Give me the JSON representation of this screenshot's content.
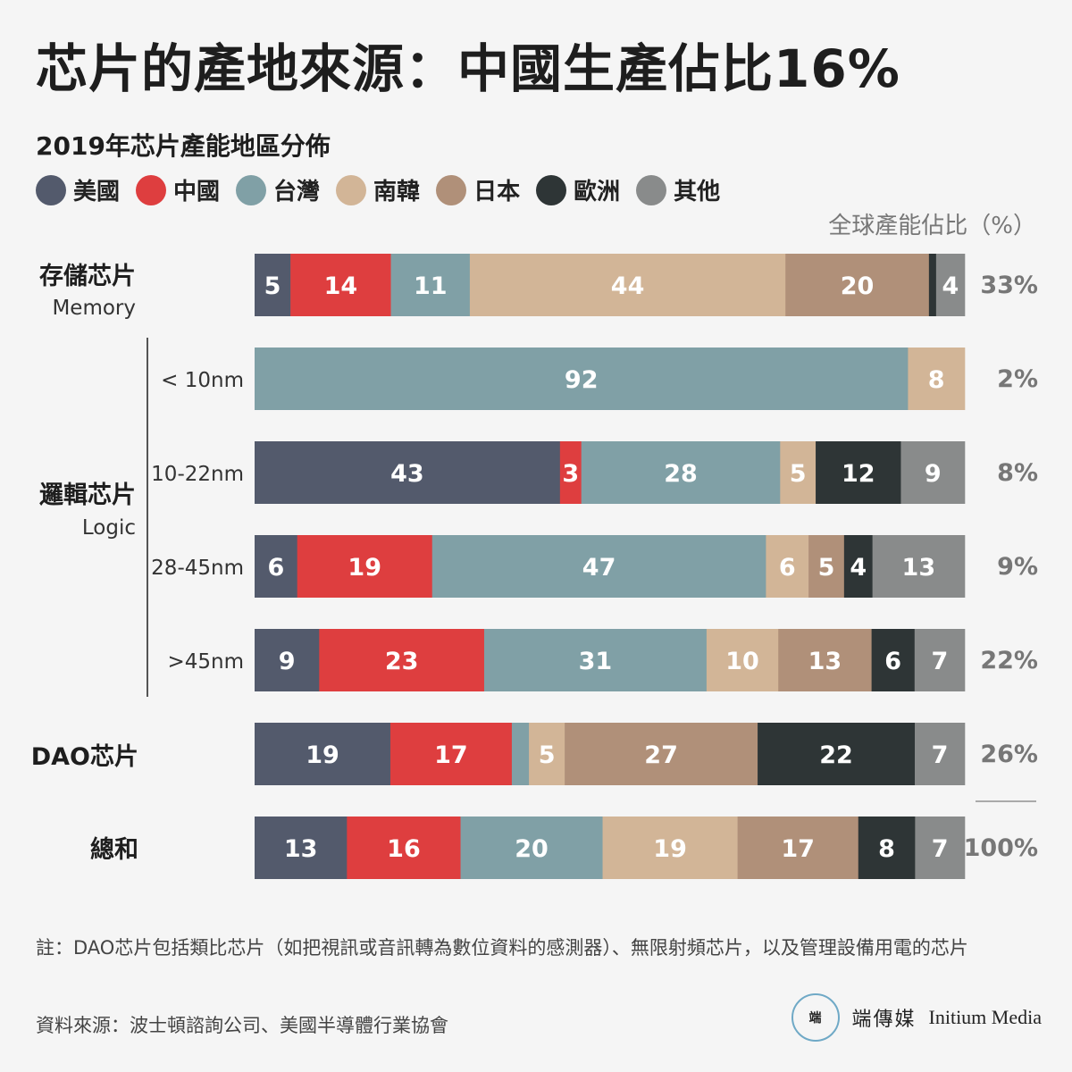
{
  "title": "芯片的產地來源：中國生產佔比16%",
  "subtitle": "2019年芯片產能地區分佈",
  "share_header": "全球產能佔比（%）",
  "legend": [
    {
      "label": "美國",
      "color": "#535a6c"
    },
    {
      "label": "中國",
      "color": "#de3e3f"
    },
    {
      "label": "台灣",
      "color": "#80a0a6"
    },
    {
      "label": "南韓",
      "color": "#d2b597"
    },
    {
      "label": "日本",
      "color": "#b09079"
    },
    {
      "label": "歐洲",
      "color": "#2e3536"
    },
    {
      "label": "其他",
      "color": "#898b8b"
    }
  ],
  "groups": [
    {
      "label": "存儲芯片",
      "sublabel": "Memory"
    },
    {
      "label": "邏輯芯片",
      "sublabel": "Logic"
    },
    {
      "label": "DAO芯片",
      "sublabel": ""
    },
    {
      "label": "總和",
      "sublabel": ""
    }
  ],
  "chart_data": {
    "type": "bar",
    "orientation": "horizontal",
    "stacked": true,
    "series_names": [
      "美國",
      "中國",
      "台灣",
      "南韓",
      "日本",
      "歐洲",
      "其他"
    ],
    "rows": [
      {
        "label": "",
        "group": "存儲芯片",
        "values": [
          5,
          14,
          11,
          44,
          20,
          1,
          4
        ],
        "labels": [
          "5",
          "14",
          "11",
          "44",
          "20",
          "",
          "4"
        ],
        "share": "33%"
      },
      {
        "label": "< 10nm",
        "group": "邏輯芯片",
        "values": [
          0,
          0,
          92,
          8,
          0,
          0,
          0
        ],
        "labels": [
          "",
          "",
          "92",
          "8",
          "",
          "",
          ""
        ],
        "share": "2%"
      },
      {
        "label": "10-22nm",
        "group": "邏輯芯片",
        "values": [
          43,
          3,
          28,
          5,
          0,
          12,
          9
        ],
        "labels": [
          "43",
          "3",
          "28",
          "5",
          "",
          "12",
          "9"
        ],
        "share": "8%"
      },
      {
        "label": "28-45nm",
        "group": "邏輯芯片",
        "values": [
          6,
          19,
          47,
          6,
          5,
          4,
          13
        ],
        "labels": [
          "6",
          "19",
          "47",
          "6",
          "5",
          "4",
          "13"
        ],
        "share": "9%"
      },
      {
        "label": ">45nm",
        "group": "邏輯芯片",
        "values": [
          9,
          23,
          31,
          10,
          13,
          6,
          7
        ],
        "labels": [
          "9",
          "23",
          "31",
          "10",
          "13",
          "6",
          "7"
        ],
        "share": "22%"
      },
      {
        "label": "",
        "group": "DAO芯片",
        "values": [
          19,
          17,
          2.4,
          5,
          27,
          22,
          7
        ],
        "labels": [
          "19",
          "17",
          "",
          "5",
          "27",
          "22",
          "7"
        ],
        "share": "26%"
      },
      {
        "label": "",
        "group": "總和",
        "values": [
          13,
          16,
          20,
          19,
          17,
          8,
          7
        ],
        "labels": [
          "13",
          "16",
          "20",
          "19",
          "17",
          "8",
          "7"
        ],
        "share": "100%"
      }
    ]
  },
  "note": "註：DAO芯片包括類比芯片（如把視訊或音訊轉為數位資料的感測器）、無限射頻芯片，以及管理設備用電的芯片",
  "source": "資料來源：波士頓諮詢公司、美國半導體行業協會",
  "brand": {
    "logo_text": "端",
    "cn": "端傳媒",
    "en": "Initium Media"
  }
}
